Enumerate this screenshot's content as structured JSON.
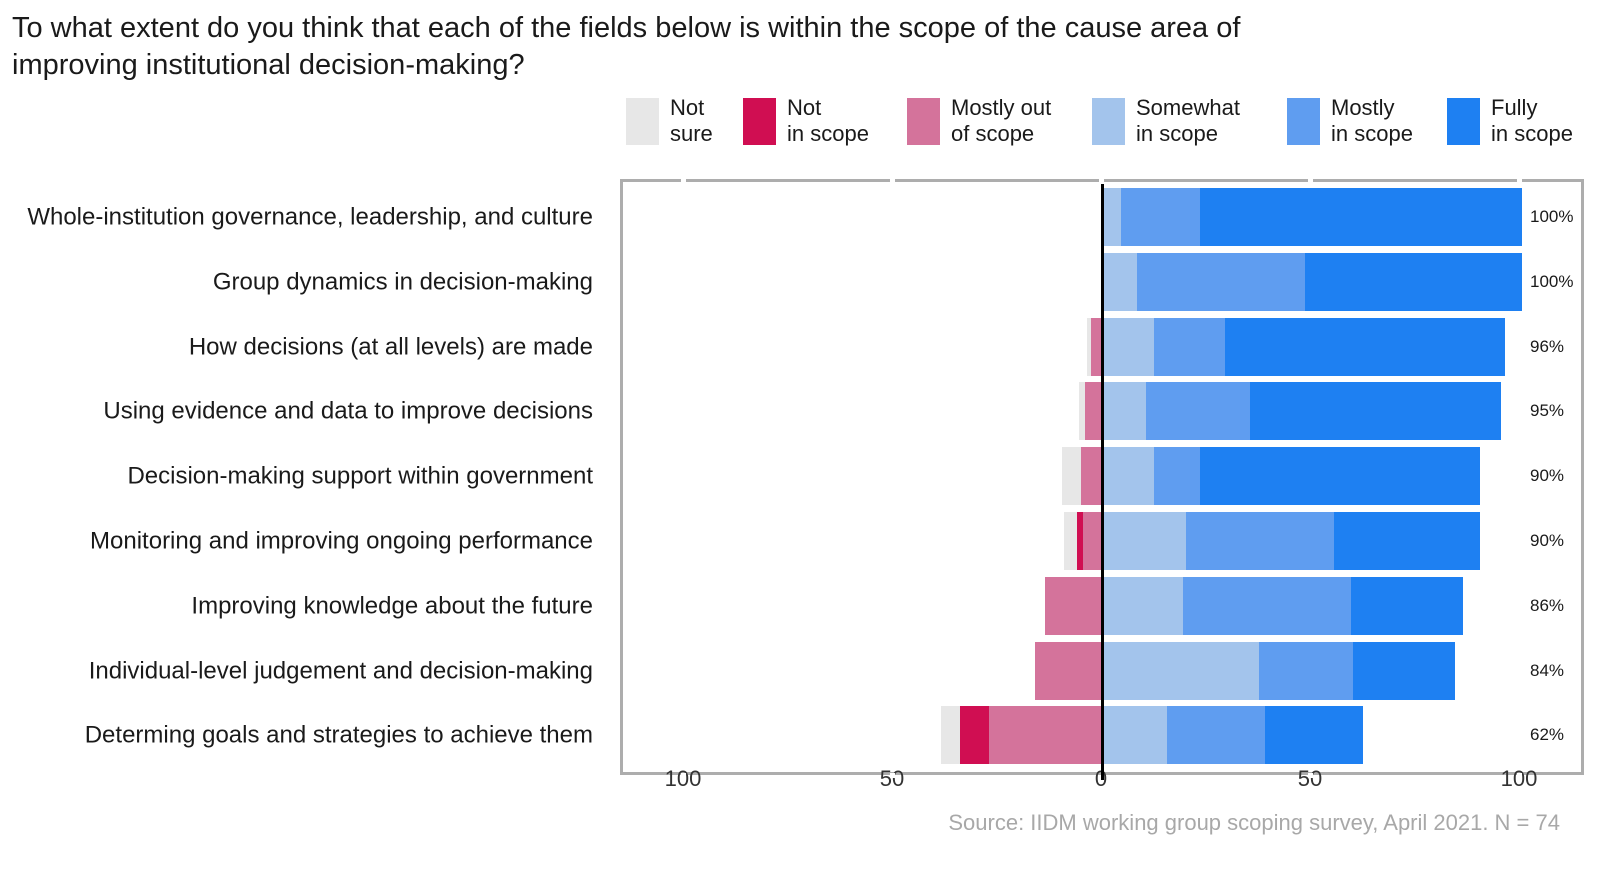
{
  "title": {
    "line1": "To what extent do you think that each of the fields below is within the scope of the cause area of",
    "line2": "improving institutional decision-making?"
  },
  "source": "Source: IIDM working group scoping survey, April 2021. N = 74",
  "colors": {
    "not_sure": "#e7e7e7",
    "not_in_scope": "#d00e52",
    "mostly_out_of_scope": "#d4739b",
    "somewhat_in_scope": "#a3c4ec",
    "mostly_in_scope": "#5f9df0",
    "fully_in_scope": "#1e80f2",
    "panel_border": "#adadad",
    "zero_line": "#000000",
    "tick_label": "#333333",
    "source_text": "#a8a8a8"
  },
  "chart_data": {
    "type": "bar",
    "subtype": "diverging-stacked-horizontal",
    "title": "To what extent do you think that each of the fields below is within the scope of the cause area of improving institutional decision-making?",
    "xlabel": "",
    "ylabel": "",
    "unit": "percent of respondents",
    "axis": {
      "ticks": [
        -100,
        -50,
        0,
        50,
        100
      ],
      "tick_labels": [
        "100",
        "50",
        "0",
        "50",
        "100"
      ],
      "xlim": [
        -115,
        116
      ],
      "grid": false
    },
    "legend_position": "top",
    "legend": [
      {
        "key": "not_sure",
        "line1": "Not",
        "line2": "sure",
        "color": "#e7e7e7"
      },
      {
        "key": "not_in_scope",
        "line1": "Not",
        "line2": "in scope",
        "color": "#d00e52"
      },
      {
        "key": "mostly_out_of_scope",
        "line1": "Mostly out",
        "line2": "of scope",
        "color": "#d4739b"
      },
      {
        "key": "somewhat_in_scope",
        "line1": "Somewhat",
        "line2": "in scope",
        "color": "#a3c4ec"
      },
      {
        "key": "mostly_in_scope",
        "line1": "Mostly",
        "line2": "in scope",
        "color": "#5f9df0"
      },
      {
        "key": "fully_in_scope",
        "line1": "Fully",
        "line2": "in scope",
        "color": "#1e80f2"
      }
    ],
    "categories": [
      "Whole-institution governance, leadership, and culture",
      "Group dynamics in decision-making",
      "How decisions (at all levels) are made",
      "Using evidence and data to improve decisions",
      "Decision-making support within government",
      "Monitoring and improving ongoing performance",
      "Improving knowledge about the future",
      "Individual-level judgement and decision-making",
      "Determing goals and strategies to achieve them"
    ],
    "series": [
      {
        "name": "Not sure",
        "key": "not_sure",
        "side": "negative",
        "values": [
          0,
          0,
          1,
          1.5,
          4.5,
          3,
          0,
          0,
          4.5
        ]
      },
      {
        "name": "Not in scope",
        "key": "not_in_scope",
        "side": "negative",
        "values": [
          0,
          0,
          0,
          0,
          0,
          1.5,
          0,
          0,
          7
        ]
      },
      {
        "name": "Mostly out of scope",
        "key": "mostly_out_of_scope",
        "side": "negative",
        "values": [
          0,
          0,
          3,
          4.5,
          5.5,
          5,
          14,
          16.5,
          27.5
        ]
      },
      {
        "name": "Somewhat in scope",
        "key": "somewhat_in_scope",
        "side": "positive",
        "values": [
          4,
          8,
          12,
          10,
          12,
          19.5,
          19,
          37,
          15
        ]
      },
      {
        "name": "Mostly in scope",
        "key": "mostly_in_scope",
        "side": "positive",
        "values": [
          19,
          40,
          17,
          25,
          11,
          35.5,
          40,
          22.5,
          23.5
        ]
      },
      {
        "name": "Fully in scope",
        "key": "fully_in_scope",
        "side": "positive",
        "values": [
          77,
          52,
          67,
          60,
          67,
          35,
          27,
          24.5,
          23.5
        ]
      }
    ],
    "totals_in_scope_labels": [
      "100%",
      "100%",
      "96%",
      "95%",
      "90%",
      "90%",
      "86%",
      "84%",
      "62%"
    ]
  }
}
